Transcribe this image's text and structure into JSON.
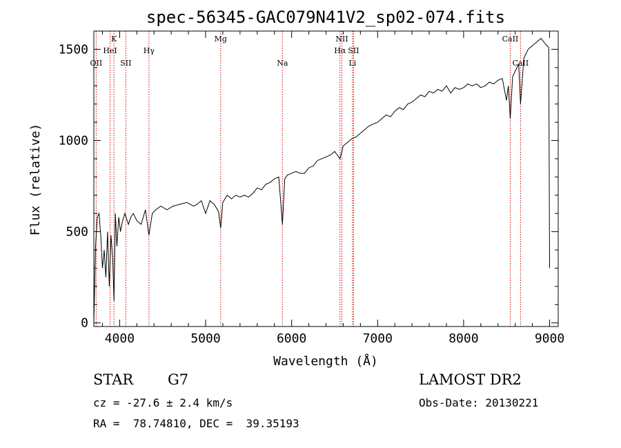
{
  "chart_data": {
    "type": "line",
    "title": "spec-56345-GAC079N41V2_sp02-074.fits",
    "xlabel": "Wavelength (Å)",
    "ylabel": "Flux (relative)",
    "xlim": [
      3700,
      9100
    ],
    "ylim": [
      -20,
      1600
    ],
    "x_ticks": [
      4000,
      5000,
      6000,
      7000,
      8000,
      9000
    ],
    "x_tick_labels": [
      "4000",
      "5000",
      "6000",
      "7000",
      "8000",
      "9000"
    ],
    "y_ticks": [
      0,
      500,
      1000,
      1500
    ],
    "y_tick_labels": [
      "0",
      "500",
      "1000",
      "1500"
    ],
    "x_minor_step": 200,
    "y_minor_step": 100,
    "series": [
      {
        "name": "flux",
        "x": [
          3700,
          3720,
          3740,
          3760,
          3780,
          3800,
          3820,
          3840,
          3860,
          3880,
          3900,
          3920,
          3934,
          3950,
          3968,
          3990,
          4010,
          4030,
          4060,
          4102,
          4130,
          4160,
          4200,
          4250,
          4300,
          4340,
          4380,
          4420,
          4480,
          4550,
          4620,
          4700,
          4780,
          4861,
          4900,
          4950,
          5000,
          5050,
          5100,
          5150,
          5175,
          5200,
          5250,
          5300,
          5350,
          5400,
          5450,
          5500,
          5550,
          5600,
          5650,
          5700,
          5750,
          5800,
          5850,
          5893,
          5920,
          5950,
          6000,
          6050,
          6100,
          6150,
          6200,
          6250,
          6300,
          6350,
          6400,
          6450,
          6500,
          6563,
          6600,
          6650,
          6700,
          6750,
          6800,
          6850,
          6900,
          6950,
          7000,
          7050,
          7100,
          7150,
          7200,
          7250,
          7300,
          7350,
          7400,
          7450,
          7500,
          7550,
          7600,
          7650,
          7700,
          7750,
          7800,
          7850,
          7900,
          7950,
          8000,
          8050,
          8100,
          8150,
          8200,
          8250,
          8300,
          8350,
          8400,
          8450,
          8498,
          8520,
          8542,
          8570,
          8600,
          8640,
          8662,
          8700,
          8750,
          8800,
          8850,
          8900,
          8950,
          8990,
          9000
        ],
        "y": [
          0,
          420,
          580,
          600,
          480,
          300,
          400,
          250,
          500,
          200,
          480,
          350,
          120,
          600,
          420,
          580,
          500,
          550,
          600,
          540,
          580,
          600,
          560,
          540,
          620,
          480,
          600,
          620,
          640,
          620,
          640,
          650,
          660,
          640,
          650,
          670,
          600,
          670,
          650,
          610,
          520,
          660,
          700,
          680,
          700,
          690,
          700,
          690,
          710,
          740,
          730,
          760,
          770,
          790,
          800,
          540,
          790,
          810,
          820,
          830,
          820,
          820,
          850,
          860,
          890,
          900,
          910,
          920,
          940,
          900,
          970,
          990,
          1010,
          1020,
          1040,
          1060,
          1080,
          1090,
          1100,
          1120,
          1140,
          1130,
          1160,
          1180,
          1170,
          1200,
          1210,
          1230,
          1250,
          1240,
          1270,
          1260,
          1280,
          1270,
          1300,
          1260,
          1290,
          1280,
          1290,
          1310,
          1300,
          1310,
          1290,
          1300,
          1320,
          1310,
          1330,
          1340,
          1220,
          1300,
          1120,
          1350,
          1380,
          1420,
          1200,
          1450,
          1500,
          1520,
          1540,
          1560,
          1530,
          1510,
          300
        ]
      }
    ],
    "line_markers": [
      {
        "label": "OII",
        "x": 3727,
        "row": 3
      },
      {
        "label": "K",
        "x": 3934,
        "row": 1
      },
      {
        "label": "HeI",
        "x": 3889,
        "row": 2
      },
      {
        "label": "SII",
        "x": 4072,
        "row": 3
      },
      {
        "label": "Hγ",
        "x": 4341,
        "row": 2
      },
      {
        "label": "Mg",
        "x": 5175,
        "row": 1
      },
      {
        "label": "Na",
        "x": 5893,
        "row": 3
      },
      {
        "label": "NII",
        "x": 6584,
        "row": 1
      },
      {
        "label": "Hα",
        "x": 6563,
        "row": 2
      },
      {
        "label": "SII",
        "x": 6720,
        "row": 2
      },
      {
        "label": "Li",
        "x": 6708,
        "row": 3
      },
      {
        "label": "CaII",
        "x": 8542,
        "row": 1
      },
      {
        "label": "CaII",
        "x": 8662,
        "row": 3
      }
    ]
  },
  "info": {
    "object_class": "STAR",
    "subclass": "G7",
    "cz": "cz = -27.6 ± 2.4 km/s",
    "coords": "RA =  78.74810, DEC =  39.35193",
    "survey": "LAMOST DR2",
    "obs_date": "Obs-Date: 20130221"
  }
}
